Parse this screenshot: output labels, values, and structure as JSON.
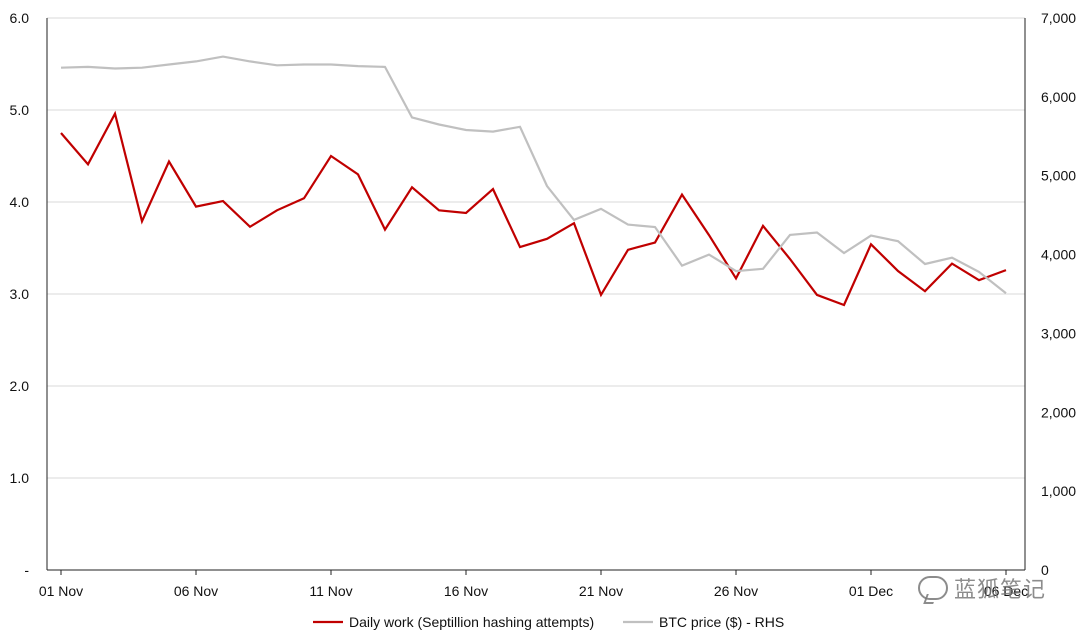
{
  "chart_data": {
    "type": "line",
    "title": "",
    "xlabel": "",
    "ylabel": "",
    "ylabel_right": "",
    "x_tick_labels": [
      "01 Nov",
      "06 Nov",
      "11 Nov",
      "16 Nov",
      "21 Nov",
      "26 Nov",
      "01 Dec",
      "06 Dec"
    ],
    "x": [
      "01 Nov",
      "02 Nov",
      "03 Nov",
      "04 Nov",
      "05 Nov",
      "06 Nov",
      "07 Nov",
      "08 Nov",
      "09 Nov",
      "10 Nov",
      "11 Nov",
      "12 Nov",
      "13 Nov",
      "14 Nov",
      "15 Nov",
      "16 Nov",
      "17 Nov",
      "18 Nov",
      "19 Nov",
      "20 Nov",
      "21 Nov",
      "22 Nov",
      "23 Nov",
      "24 Nov",
      "25 Nov",
      "26 Nov",
      "27 Nov",
      "28 Nov",
      "29 Nov",
      "30 Nov",
      "01 Dec",
      "02 Dec",
      "03 Dec",
      "04 Dec",
      "05 Dec",
      "06 Dec"
    ],
    "y_left_ticks": [
      "-",
      "1.0",
      "2.0",
      "3.0",
      "4.0",
      "5.0",
      "6.0"
    ],
    "y_right_ticks": [
      "0",
      "1,000",
      "2,000",
      "3,000",
      "4,000",
      "5,000",
      "6,000",
      "7,000"
    ],
    "ylim_left": [
      0,
      6
    ],
    "ylim_right": [
      0,
      7000
    ],
    "grid": true,
    "legend_position": "bottom",
    "series": [
      {
        "name": "Daily work (Septillion hashing attempts)",
        "axis": "left",
        "color": "#c00000",
        "values": [
          4.75,
          4.41,
          4.96,
          3.79,
          4.44,
          3.95,
          4.01,
          3.73,
          3.91,
          4.04,
          4.5,
          4.3,
          3.7,
          4.16,
          3.91,
          3.88,
          4.14,
          3.51,
          3.6,
          3.77,
          2.99,
          3.48,
          3.56,
          4.08,
          3.64,
          3.17,
          3.74,
          3.38,
          2.99,
          2.88,
          3.54,
          3.25,
          3.03,
          3.33,
          3.15,
          3.26
        ]
      },
      {
        "name": "BTC price ($) - RHS",
        "axis": "right",
        "color": "#c0c0c0",
        "values": [
          6370,
          6380,
          6360,
          6370,
          6410,
          6450,
          6510,
          6450,
          6400,
          6410,
          6410,
          6390,
          6380,
          5740,
          5650,
          5580,
          5560,
          5620,
          4870,
          4440,
          4580,
          4380,
          4350,
          3860,
          4000,
          3790,
          3820,
          4250,
          4280,
          4020,
          4240,
          4170,
          3880,
          3960,
          3780,
          3510
        ]
      }
    ]
  },
  "watermark_text": "蓝狐笔记"
}
